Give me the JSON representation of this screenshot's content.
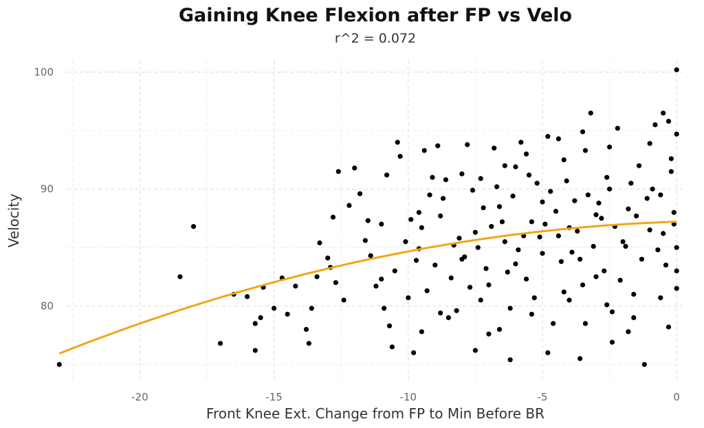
{
  "chart_data": {
    "type": "scatter",
    "title": "Gaining Knee Flexion after FP vs Velo",
    "subtitle": "r^2 = 0.072",
    "xlabel": "Front Knee Ext. Change from FP to Min Before BR",
    "ylabel": "Velocity",
    "xlim": [
      -22.7,
      0.2
    ],
    "ylim": [
      73.5,
      101
    ],
    "x_ticks": [
      -20,
      -15,
      -10,
      -5,
      0
    ],
    "y_ticks": [
      80,
      90,
      100
    ],
    "grid": true,
    "legend": "none",
    "colors": {
      "points": "#000000",
      "trend": "#f2a516"
    },
    "points": [
      [
        -23.0,
        75.0
      ],
      [
        -18.0,
        86.8
      ],
      [
        -18.5,
        82.5
      ],
      [
        -17.0,
        76.8
      ],
      [
        -16.5,
        81.0
      ],
      [
        -16.0,
        80.8
      ],
      [
        -15.7,
        78.5
      ],
      [
        -15.7,
        76.2
      ],
      [
        -15.5,
        79.0
      ],
      [
        -15.4,
        81.6
      ],
      [
        -15.0,
        79.8
      ],
      [
        -14.7,
        82.4
      ],
      [
        -14.5,
        79.3
      ],
      [
        -14.2,
        81.7
      ],
      [
        -13.8,
        78.0
      ],
      [
        -13.7,
        76.8
      ],
      [
        -13.6,
        79.8
      ],
      [
        -13.4,
        82.5
      ],
      [
        -13.3,
        85.4
      ],
      [
        -13.0,
        84.1
      ],
      [
        -12.9,
        83.3
      ],
      [
        -12.8,
        87.6
      ],
      [
        -12.7,
        82.0
      ],
      [
        -12.6,
        91.5
      ],
      [
        -12.4,
        80.5
      ],
      [
        -12.0,
        91.8
      ],
      [
        -11.8,
        89.6
      ],
      [
        -11.5,
        87.3
      ],
      [
        -11.4,
        84.3
      ],
      [
        -11.2,
        81.7
      ],
      [
        -11.0,
        82.3
      ],
      [
        -10.9,
        79.8
      ],
      [
        -10.8,
        91.2
      ],
      [
        -10.7,
        78.3
      ],
      [
        -10.6,
        76.5
      ],
      [
        -10.4,
        94.0
      ],
      [
        -10.3,
        92.8
      ],
      [
        -10.0,
        80.7
      ],
      [
        -9.8,
        76.0
      ],
      [
        -9.6,
        88.0
      ],
      [
        -9.5,
        86.7
      ],
      [
        -9.4,
        93.3
      ],
      [
        -9.2,
        89.5
      ],
      [
        -9.0,
        83.5
      ],
      [
        -8.9,
        93.7
      ],
      [
        -8.7,
        89.2
      ],
      [
        -8.5,
        79.0
      ],
      [
        -8.3,
        85.2
      ],
      [
        -8.0,
        91.3
      ],
      [
        -7.8,
        93.8
      ],
      [
        -7.6,
        89.9
      ],
      [
        -7.5,
        86.3
      ],
      [
        -7.3,
        80.5
      ],
      [
        -7.1,
        83.2
      ],
      [
        -7.0,
        77.6
      ],
      [
        -6.8,
        93.5
      ],
      [
        -6.6,
        88.5
      ],
      [
        -6.4,
        85.5
      ],
      [
        -6.2,
        79.8
      ],
      [
        -6.0,
        91.9
      ],
      [
        -5.8,
        94.0
      ],
      [
        -5.6,
        82.3
      ],
      [
        -5.4,
        87.2
      ],
      [
        -5.2,
        90.5
      ],
      [
        -5.0,
        84.5
      ],
      [
        -4.8,
        94.5
      ],
      [
        -4.6,
        78.5
      ],
      [
        -4.4,
        86.0
      ],
      [
        -4.2,
        92.5
      ],
      [
        -4.0,
        80.5
      ],
      [
        -3.8,
        89.0
      ],
      [
        -3.6,
        84.0
      ],
      [
        -3.4,
        93.3
      ],
      [
        -3.2,
        96.5
      ],
      [
        -3.0,
        82.5
      ],
      [
        -2.8,
        87.5
      ],
      [
        -2.6,
        91.0
      ],
      [
        -2.4,
        79.5
      ],
      [
        -2.2,
        95.2
      ],
      [
        -2.0,
        85.5
      ],
      [
        -1.8,
        88.3
      ],
      [
        -1.6,
        81.0
      ],
      [
        -1.4,
        92.0
      ],
      [
        -1.2,
        75.0
      ],
      [
        -1.0,
        86.5
      ],
      [
        -0.8,
        95.5
      ],
      [
        -0.6,
        89.5
      ],
      [
        -0.5,
        96.5
      ],
      [
        -0.4,
        83.5
      ],
      [
        -0.3,
        78.2
      ],
      [
        -0.2,
        91.5
      ],
      [
        -0.1,
        87.0
      ],
      [
        0.0,
        100.2
      ],
      [
        0.0,
        94.7
      ],
      [
        0.0,
        81.5
      ],
      [
        -9.7,
        83.9
      ],
      [
        -8.8,
        87.7
      ],
      [
        -7.7,
        81.6
      ],
      [
        -6.7,
        90.2
      ],
      [
        -5.7,
        86.0
      ],
      [
        -4.7,
        89.8
      ],
      [
        -3.7,
        86.4
      ],
      [
        -2.7,
        83.0
      ],
      [
        -1.7,
        90.5
      ],
      [
        -0.7,
        84.8
      ],
      [
        -9.1,
        91.0
      ],
      [
        -8.1,
        85.8
      ],
      [
        -7.2,
        88.4
      ],
      [
        -6.3,
        82.9
      ],
      [
        -5.3,
        80.7
      ],
      [
        -4.3,
        83.8
      ],
      [
        -3.3,
        89.5
      ],
      [
        -2.3,
        86.8
      ],
      [
        -1.3,
        84.0
      ],
      [
        -0.9,
        90.0
      ],
      [
        -10.1,
        85.5
      ],
      [
        -9.3,
        81.3
      ],
      [
        -8.4,
        82.4
      ],
      [
        -7.4,
        85.0
      ],
      [
        -6.5,
        87.2
      ],
      [
        -5.5,
        91.2
      ],
      [
        -4.5,
        88.1
      ],
      [
        -3.5,
        81.8
      ],
      [
        -2.5,
        90.0
      ],
      [
        -1.5,
        87.7
      ],
      [
        -8.6,
        90.8
      ],
      [
        -7.9,
        84.2
      ],
      [
        -6.9,
        86.8
      ],
      [
        -5.9,
        84.8
      ],
      [
        -4.9,
        87.0
      ],
      [
        -3.9,
        84.6
      ],
      [
        -2.9,
        88.8
      ],
      [
        -1.9,
        85.1
      ],
      [
        -1.1,
        89.2
      ],
      [
        -0.5,
        86.2
      ],
      [
        -6.1,
        89.4
      ],
      [
        -5.1,
        85.9
      ],
      [
        -4.1,
        90.7
      ],
      [
        -3.1,
        85.1
      ],
      [
        -2.1,
        82.2
      ],
      [
        -7.0,
        81.8
      ],
      [
        -6.0,
        83.6
      ],
      [
        -5.0,
        88.9
      ],
      [
        -4.0,
        86.7
      ],
      [
        -3.0,
        87.8
      ],
      [
        -9.9,
        87.4
      ],
      [
        -8.2,
        79.6
      ],
      [
        -6.6,
        78.0
      ],
      [
        -5.4,
        79.3
      ],
      [
        -4.2,
        81.2
      ],
      [
        -3.4,
        78.5
      ],
      [
        -2.6,
        80.1
      ],
      [
        -1.6,
        79.0
      ],
      [
        -0.6,
        80.7
      ],
      [
        -7.5,
        76.2
      ],
      [
        -6.2,
        75.4
      ],
      [
        -4.8,
        76.0
      ],
      [
        -3.6,
        75.5
      ],
      [
        -2.4,
        76.9
      ],
      [
        -1.8,
        77.8
      ],
      [
        -9.5,
        77.8
      ],
      [
        -8.8,
        79.4
      ],
      [
        -11.6,
        85.6
      ],
      [
        -12.2,
        88.6
      ],
      [
        -11.0,
        87.0
      ],
      [
        -10.5,
        83.0
      ],
      [
        -9.6,
        84.9
      ],
      [
        -8.0,
        84.0
      ],
      [
        -7.3,
        90.9
      ],
      [
        -6.4,
        92.0
      ],
      [
        -5.6,
        93.0
      ],
      [
        -4.4,
        94.3
      ],
      [
        -3.5,
        94.9
      ],
      [
        -2.5,
        93.6
      ],
      [
        -1.0,
        93.9
      ],
      [
        -0.3,
        95.8
      ],
      [
        -0.2,
        92.6
      ],
      [
        -0.1,
        88.0
      ],
      [
        0.0,
        85.0
      ],
      [
        0.0,
        83.0
      ]
    ]
  }
}
